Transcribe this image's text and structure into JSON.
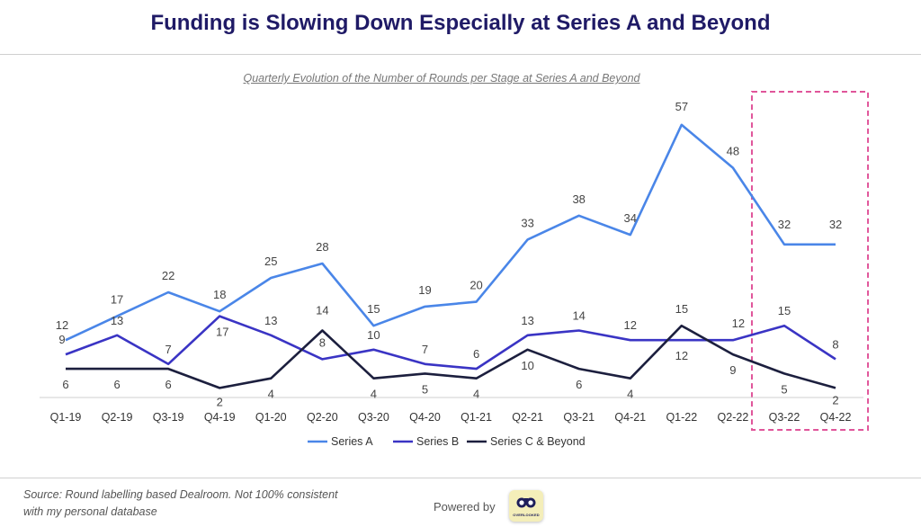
{
  "header": {
    "title": "Funding is Slowing Down Especially at Series A and Beyond"
  },
  "chart_data": {
    "type": "line",
    "title": "Quarterly Evolution of the Number of Rounds per Stage at Series A and Beyond",
    "categories": [
      "Q1-19",
      "Q2-19",
      "Q3-19",
      "Q4-19",
      "Q1-20",
      "Q2-20",
      "Q3-20",
      "Q4-20",
      "Q1-21",
      "Q2-21",
      "Q3-21",
      "Q4-21",
      "Q1-22",
      "Q2-22",
      "Q3-22",
      "Q4-22"
    ],
    "series": [
      {
        "name": "Series A",
        "color": "#4a86e8",
        "values": [
          12,
          17,
          22,
          18,
          25,
          28,
          15,
          19,
          20,
          33,
          38,
          34,
          57,
          48,
          32,
          32
        ]
      },
      {
        "name": "Series B",
        "color": "#3a34c4",
        "values": [
          9,
          13,
          7,
          17,
          13,
          8,
          10,
          7,
          6,
          13,
          14,
          12,
          12,
          12,
          15,
          8
        ]
      },
      {
        "name": "Series C & Beyond",
        "color": "#1c1f3e",
        "values": [
          6,
          6,
          6,
          2,
          4,
          14,
          4,
          5,
          4,
          10,
          6,
          4,
          15,
          9,
          5,
          2
        ]
      }
    ],
    "highlight": {
      "categories": [
        "Q3-22",
        "Q4-22"
      ],
      "color": "#e0559a",
      "style": "dashed"
    },
    "legend": "bottom",
    "grid": false
  },
  "footer": {
    "source_line1": "Source: Round labelling based Dealroom. Not 100% consistent",
    "source_line2": "with my personal database",
    "powered_by": "Powered by",
    "logo_text": "OVERLOOKED"
  }
}
